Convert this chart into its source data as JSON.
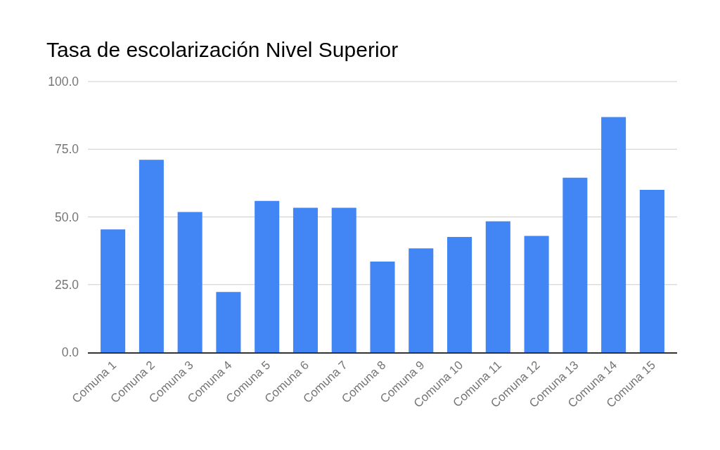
{
  "chart_data": {
    "type": "bar",
    "title": "Tasa de escolarización Nivel Superior",
    "categories": [
      "Comuna 1",
      "Comuna 2",
      "Comuna 3",
      "Comuna 4",
      "Comuna 5",
      "Comuna 6",
      "Comuna 7",
      "Comuna 8",
      "Comuna 9",
      "Comuna 10",
      "Comuna 11",
      "Comuna 12",
      "Comuna 13",
      "Comuna 14",
      "Comuna 15"
    ],
    "values": [
      45.4,
      71.1,
      51.8,
      22.3,
      55.9,
      53.4,
      53.4,
      33.5,
      38.4,
      42.6,
      48.4,
      43.0,
      64.5,
      86.9,
      60.0
    ],
    "color": "#4285f4",
    "ylim": [
      0,
      100
    ],
    "yticks": [
      {
        "value": 0,
        "label": "0.0"
      },
      {
        "value": 25,
        "label": "25.0"
      },
      {
        "value": 50,
        "label": "50.0"
      },
      {
        "value": 75,
        "label": "75.0"
      },
      {
        "value": 100,
        "label": "100.0"
      }
    ],
    "grid": "y"
  }
}
